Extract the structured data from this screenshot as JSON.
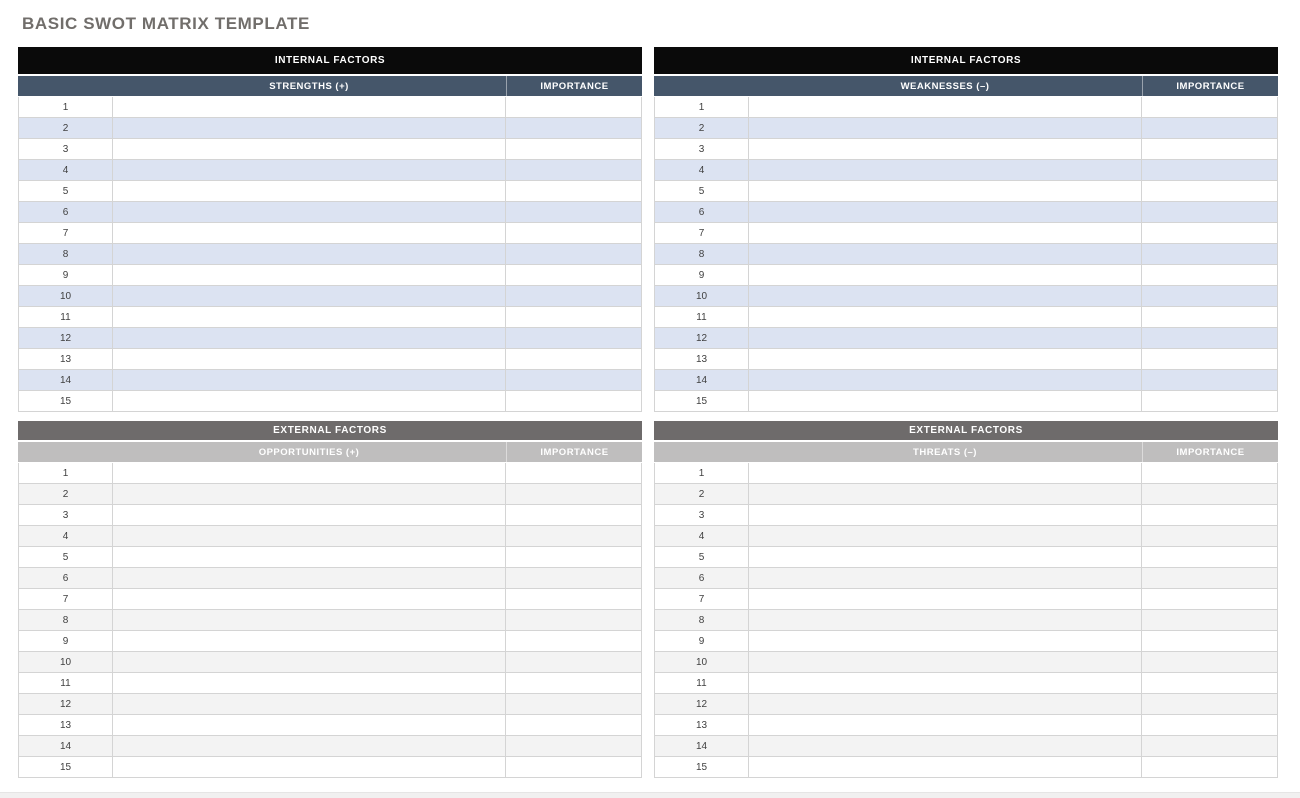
{
  "page": {
    "title": "BASIC SWOT MATRIX TEMPLATE"
  },
  "colors": {
    "title_text": "#716e6b",
    "internal_header_bg": "#0a0a0a",
    "internal_subheader_bg": "#45566a",
    "internal_stripe": "#dce3f2",
    "external_header_bg": "#6e6b6b",
    "external_subheader_bg": "#bfbebe",
    "external_stripe": "#f3f3f3",
    "header_text": "#ffffff",
    "row_border": "#d4d4d4"
  },
  "rows": {
    "numbers": [
      "1",
      "2",
      "3",
      "4",
      "5",
      "6",
      "7",
      "8",
      "9",
      "10",
      "11",
      "12",
      "13",
      "14",
      "15"
    ],
    "content_value": "",
    "importance_value": ""
  },
  "quadrants": [
    {
      "id": "strengths",
      "section_label": "INTERNAL FACTORS",
      "column_label": "STRENGTHS (+)",
      "importance_label": "IMPORTANCE"
    },
    {
      "id": "weaknesses",
      "section_label": "INTERNAL FACTORS",
      "column_label": "WEAKNESSES (–)",
      "importance_label": "IMPORTANCE"
    },
    {
      "id": "opportunities",
      "section_label": "EXTERNAL FACTORS",
      "column_label": "OPPORTUNITIES (+)",
      "importance_label": "IMPORTANCE"
    },
    {
      "id": "threats",
      "section_label": "EXTERNAL FACTORS",
      "column_label": "THREATS (–)",
      "importance_label": "IMPORTANCE"
    }
  ]
}
